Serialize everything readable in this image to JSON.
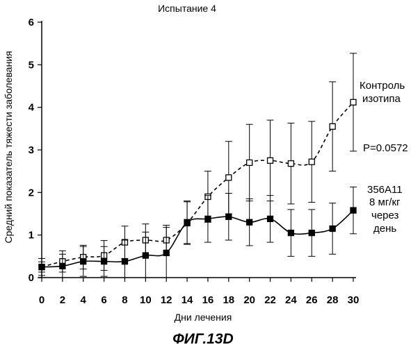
{
  "chart_data": {
    "type": "line",
    "title": "Испытание 4",
    "xlabel": "Дни лечения",
    "ylabel": "Средний показатель тяжести заболевания",
    "figure_label": "ФИГ.13D",
    "xlim": [
      0,
      30
    ],
    "ylim": [
      0,
      6
    ],
    "xticks": [
      0,
      2,
      4,
      6,
      8,
      10,
      12,
      14,
      16,
      18,
      20,
      22,
      24,
      26,
      28,
      30
    ],
    "yticks": [
      0,
      1,
      2,
      3,
      4,
      5,
      6
    ],
    "grid": false,
    "series": [
      {
        "name": "Контроль изотипа",
        "marker": "open-square",
        "line_style": "dashed",
        "x": [
          0,
          2,
          4,
          6,
          8,
          10,
          12,
          14,
          16,
          18,
          20,
          22,
          24,
          26,
          28,
          30
        ],
        "y": [
          0.25,
          0.38,
          0.48,
          0.52,
          0.83,
          0.88,
          0.88,
          1.28,
          1.9,
          2.35,
          2.7,
          2.75,
          2.68,
          2.72,
          3.55,
          4.12
        ],
        "err": [
          0.12,
          0.25,
          0.28,
          0.35,
          0.38,
          0.38,
          0.35,
          0.5,
          0.6,
          0.85,
          0.9,
          0.95,
          0.95,
          0.95,
          1.05,
          1.15
        ]
      },
      {
        "name": "356A11 8 мг/кг через день",
        "marker": "filled-square",
        "line_style": "solid",
        "x": [
          0,
          2,
          4,
          6,
          8,
          10,
          12,
          14,
          16,
          18,
          20,
          22,
          24,
          26,
          28,
          30
        ],
        "y": [
          0.25,
          0.27,
          0.38,
          0.38,
          0.38,
          0.52,
          0.58,
          1.3,
          1.38,
          1.43,
          1.3,
          1.38,
          1.05,
          1.05,
          1.15,
          1.58
        ],
        "err": [
          0.2,
          0.28,
          0.35,
          0.35,
          0.5,
          0.55,
          0.6,
          0.5,
          0.55,
          0.55,
          0.55,
          0.55,
          0.55,
          0.55,
          0.6,
          0.55
        ]
      }
    ],
    "annotations": {
      "control_label_1": "Контроль",
      "control_label_2": "изотипа",
      "p_value": "P=0.0572",
      "treat_label_1": "356A11",
      "treat_label_2": "8 мг/кг",
      "treat_label_3": "через",
      "treat_label_4": "день"
    }
  }
}
